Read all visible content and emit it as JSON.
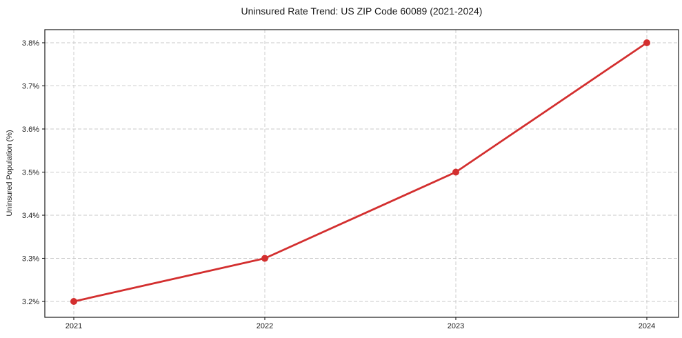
{
  "chart_data": {
    "type": "line",
    "title": "Uninsured Rate Trend: US ZIP Code 60089 (2021-2024)",
    "xlabel": "",
    "ylabel": "Uninsured Population (%)",
    "categories": [
      "2021",
      "2022",
      "2023",
      "2024"
    ],
    "values": [
      3.2,
      3.3,
      3.5,
      3.8
    ],
    "y_tick_values": [
      3.2,
      3.3,
      3.4,
      3.5,
      3.6,
      3.7,
      3.8
    ],
    "y_tick_labels": [
      "3.2%",
      "3.3%",
      "3.4%",
      "3.5%",
      "3.6%",
      "3.7%",
      "3.8%"
    ],
    "ylim": [
      3.16,
      3.83
    ],
    "grid": "dashed-both-axes",
    "legend_position": "none",
    "colors": {
      "line": "#d32f2f",
      "marker": "#d32f2f",
      "grid": "#c9c9c9",
      "axis": "#1a1a1a",
      "text": "#1a1a1a",
      "background": "#ffffff"
    }
  }
}
